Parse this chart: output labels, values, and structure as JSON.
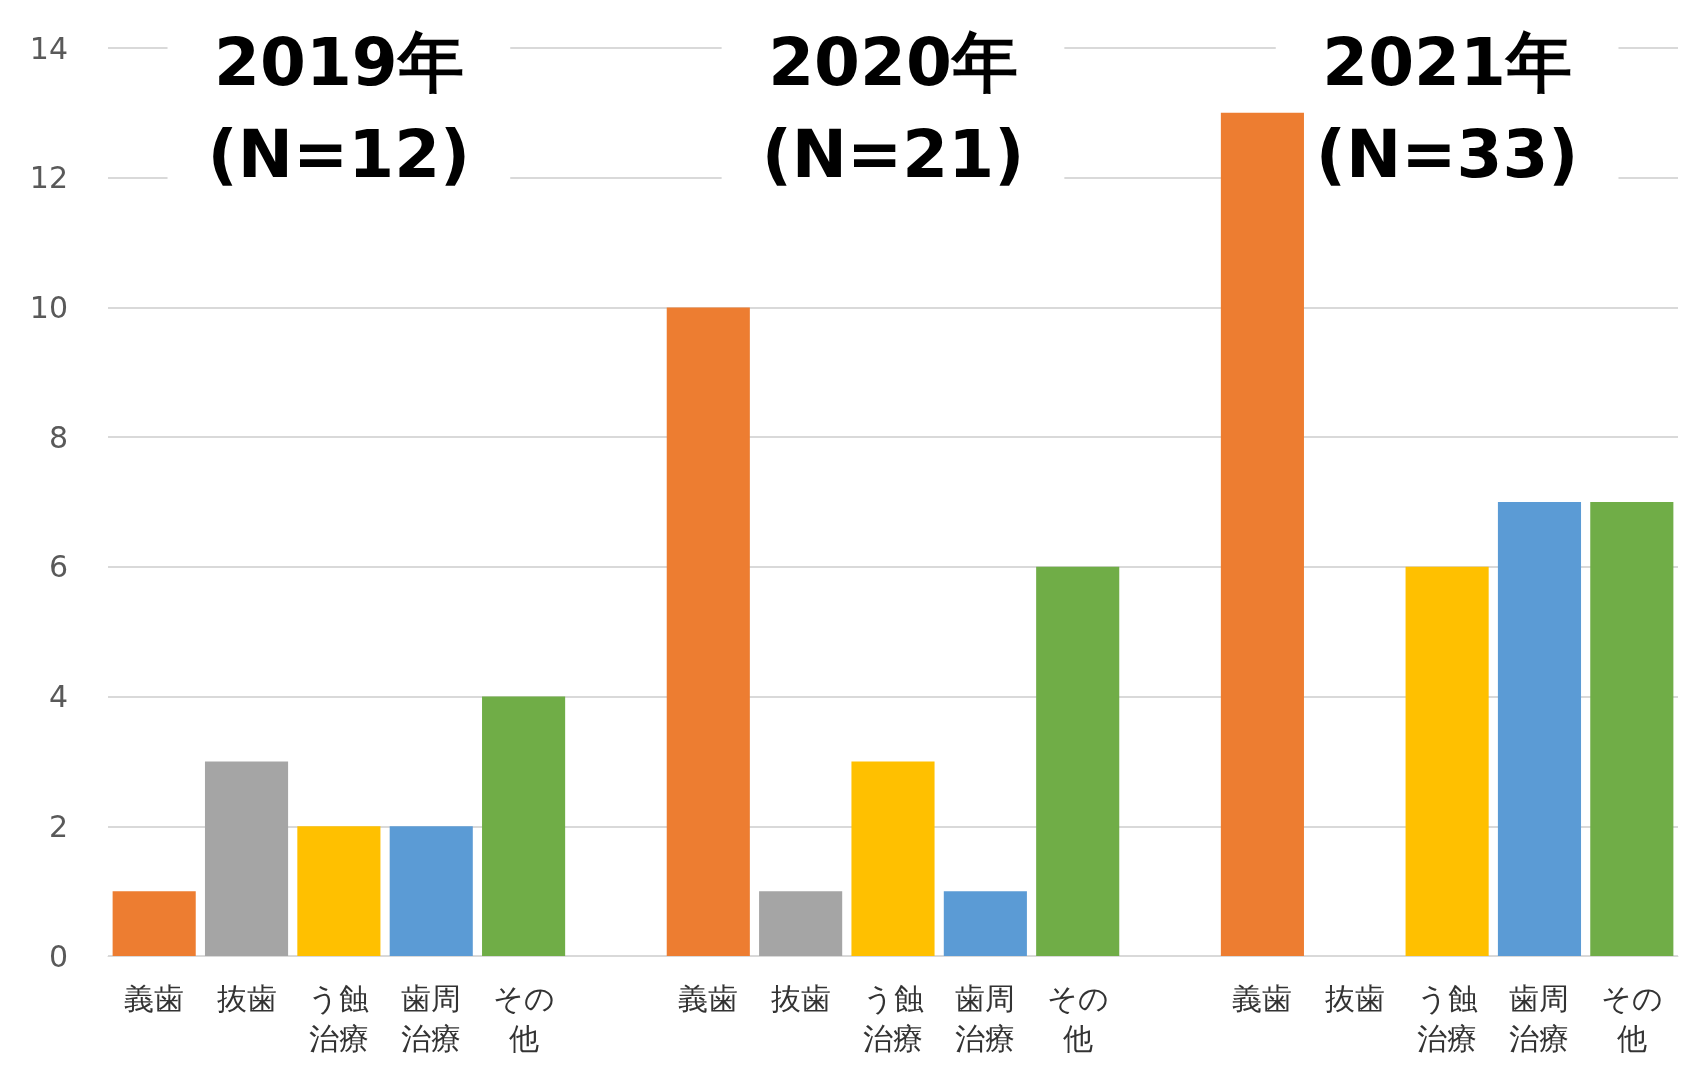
{
  "chart_data": {
    "type": "bar",
    "categories": [
      "義歯",
      "抜歯",
      "う蝕治療",
      "歯周治療",
      "その他",
      null,
      "義歯",
      "抜歯",
      "う蝕治療",
      "歯周治療",
      "その他",
      null,
      "義歯",
      "抜歯",
      "う蝕治療",
      "歯周治療",
      "その他"
    ],
    "values": [
      1,
      3,
      2,
      2,
      4,
      null,
      10,
      1,
      3,
      1,
      6,
      null,
      13,
      0,
      6,
      7,
      7
    ],
    "colors": [
      "#ed7d31",
      "#a5a5a5",
      "#ffc000",
      "#5b9bd5",
      "#70ad47",
      null,
      "#ed7d31",
      "#a5a5a5",
      "#ffc000",
      "#5b9bd5",
      "#70ad47",
      null,
      "#ed7d31",
      "#a5a5a5",
      "#ffc000",
      "#5b9bd5",
      "#70ad47"
    ],
    "annotations": [
      "2019年\n(N=12)",
      "2020年\n(N=21)",
      "2021年\n(N=33)"
    ],
    "ylim": [
      0,
      14
    ],
    "yticks": [
      0,
      2,
      4,
      6,
      8,
      10,
      12,
      14
    ],
    "grid": "y"
  }
}
